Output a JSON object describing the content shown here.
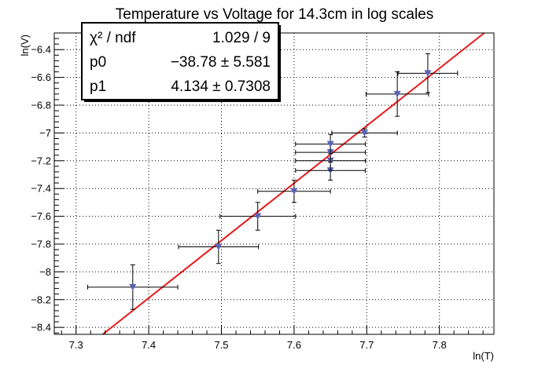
{
  "chart_data": {
    "type": "scatter",
    "title": "Temperature vs Voltage for 14.3cm in log scales",
    "xlabel": "ln(T)",
    "ylabel": "ln(V)",
    "xlim": [
      7.27,
      7.875
    ],
    "ylim": [
      -8.45,
      -6.28
    ],
    "xticks": [
      7.3,
      7.4,
      7.5,
      7.6,
      7.7,
      7.8
    ],
    "xtick_labels": [
      "7.3",
      "7.4",
      "7.5",
      "7.6",
      "7.7",
      "7.8"
    ],
    "yticks": [
      -8.4,
      -8.2,
      -8.0,
      -7.8,
      -7.6,
      -7.4,
      -7.2,
      -7.0,
      -6.8,
      -6.6,
      -6.4
    ],
    "ytick_labels": [
      "−8.4",
      "−8.2",
      "−8",
      "−7.8",
      "−7.6",
      "−7.4",
      "−7.2",
      "−7",
      "−6.8",
      "−6.6",
      "−6.4"
    ],
    "grid": true,
    "marker_color": "#5a63b8",
    "fit_color": "#e8191b",
    "points": [
      {
        "x": 7.378,
        "y": -8.11,
        "xerr": 0.062,
        "yerr": 0.16
      },
      {
        "x": 7.496,
        "y": -7.82,
        "xerr": 0.055,
        "yerr": 0.12
      },
      {
        "x": 7.55,
        "y": -7.6,
        "xerr": 0.052,
        "yerr": 0.1
      },
      {
        "x": 7.6,
        "y": -7.42,
        "xerr": 0.05,
        "yerr": 0.08
      },
      {
        "x": 7.65,
        "y": -7.27,
        "xerr": 0.048,
        "yerr": 0.07
      },
      {
        "x": 7.65,
        "y": -7.2,
        "xerr": 0.048,
        "yerr": 0.07
      },
      {
        "x": 7.65,
        "y": -7.14,
        "xerr": 0.048,
        "yerr": 0.07
      },
      {
        "x": 7.65,
        "y": -7.08,
        "xerr": 0.048,
        "yerr": 0.07
      },
      {
        "x": 7.697,
        "y": -7.0,
        "xerr": 0.045,
        "yerr": 0.03
      },
      {
        "x": 7.742,
        "y": -6.72,
        "xerr": 0.043,
        "yerr": 0.16
      },
      {
        "x": 7.784,
        "y": -6.57,
        "xerr": 0.041,
        "yerr": 0.14
      }
    ],
    "fit": {
      "p0": -38.78,
      "p1": 4.134
    },
    "stats": {
      "rows": [
        {
          "label": "χ² / ndf",
          "value": "1.029 / 9"
        },
        {
          "label": "p0",
          "value": "−38.78 ± 5.581"
        },
        {
          "label": "p1",
          "value": "4.134 ± 0.7308"
        }
      ]
    }
  }
}
